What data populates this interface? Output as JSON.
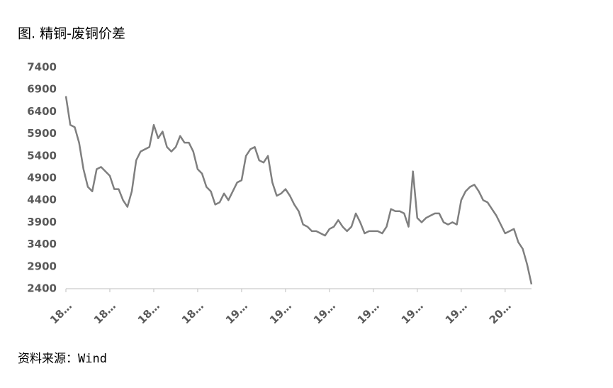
{
  "chart_data": {
    "type": "line",
    "title": "图. 精铜-废铜价差",
    "source": "资料来源：Wind",
    "categories": [
      "18…",
      null,
      null,
      null,
      null,
      null,
      null,
      null,
      null,
      null,
      "18…",
      null,
      null,
      null,
      null,
      null,
      null,
      null,
      null,
      null,
      "18…",
      null,
      null,
      null,
      null,
      null,
      null,
      null,
      null,
      null,
      "18…",
      null,
      null,
      null,
      null,
      null,
      null,
      null,
      null,
      null,
      "19…",
      null,
      null,
      null,
      null,
      null,
      null,
      null,
      null,
      null,
      "19…",
      null,
      null,
      null,
      null,
      null,
      null,
      null,
      null,
      null,
      "19…",
      null,
      null,
      null,
      null,
      null,
      null,
      null,
      null,
      null,
      "19…",
      null,
      null,
      null,
      null,
      null,
      null,
      null,
      null,
      null,
      "19…",
      null,
      null,
      null,
      null,
      null,
      null,
      null,
      null,
      null,
      "19…",
      null,
      null,
      null,
      null,
      null,
      null,
      null,
      null,
      null,
      "20…",
      null,
      null,
      null,
      null,
      null,
      null
    ],
    "values": [
      6750,
      6100,
      6050,
      5700,
      5100,
      4700,
      4600,
      5100,
      5150,
      5050,
      4950,
      4650,
      4650,
      4400,
      4250,
      4600,
      5300,
      5500,
      5550,
      5600,
      6100,
      5800,
      5950,
      5600,
      5500,
      5600,
      5850,
      5700,
      5700,
      5500,
      5100,
      5000,
      4700,
      4600,
      4300,
      4350,
      4550,
      4400,
      4600,
      4800,
      4850,
      5400,
      5550,
      5600,
      5300,
      5250,
      5400,
      4800,
      4500,
      4550,
      4650,
      4500,
      4300,
      4150,
      3850,
      3800,
      3700,
      3700,
      3650,
      3600,
      3750,
      3800,
      3950,
      3800,
      3700,
      3800,
      4100,
      3900,
      3650,
      3700,
      3700,
      3700,
      3650,
      3800,
      4200,
      4150,
      4150,
      4100,
      3800,
      5050,
      4000,
      3900,
      4000,
      4050,
      4100,
      4100,
      3900,
      3850,
      3900,
      3850,
      4400,
      4600,
      4700,
      4750,
      4600,
      4400,
      4350,
      4200,
      4050,
      3850,
      3650,
      3700,
      3750,
      3450,
      3300,
      2950,
      2500
    ],
    "color": "#7f7f7f",
    "ylim": [
      2400,
      7400
    ],
    "yticks": [
      2400,
      2900,
      3400,
      3900,
      4400,
      4900,
      5400,
      5900,
      6400,
      6900,
      7400
    ],
    "grid": false
  }
}
